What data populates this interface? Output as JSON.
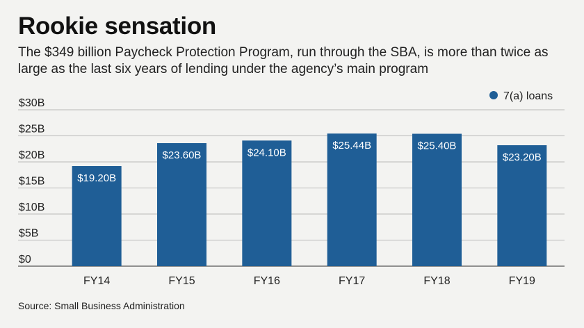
{
  "header": {
    "title": "Rookie sensation",
    "subtitle": "The $349 billion Paycheck Protection Program, run through the SBA, is more than twice as large as the last six years of lending under the agency’s main program"
  },
  "source": "Source: Small Business Administration",
  "colors": {
    "bar": "#1f5e96",
    "grid": "#b8b8b8",
    "axis": "#555555",
    "background": "#f3f3f1"
  },
  "chart_data": {
    "type": "bar",
    "categories": [
      "FY14",
      "FY15",
      "FY16",
      "FY17",
      "FY18",
      "FY19"
    ],
    "series": [
      {
        "name": "7(a) loans",
        "values": [
          19.2,
          23.6,
          24.1,
          25.44,
          25.4,
          23.2
        ],
        "labels": [
          "$19.20B",
          "$23.60B",
          "$24.10B",
          "$25.44B",
          "$25.40B",
          "$23.20B"
        ]
      }
    ],
    "ylim": [
      0,
      30
    ],
    "yticks": [
      0,
      5,
      10,
      15,
      20,
      25,
      30
    ],
    "ytick_labels": [
      "$0",
      "$5B",
      "$10B",
      "$15B",
      "$20B",
      "$25B",
      "$30B"
    ],
    "grid": true,
    "legend_position": "top-right"
  }
}
